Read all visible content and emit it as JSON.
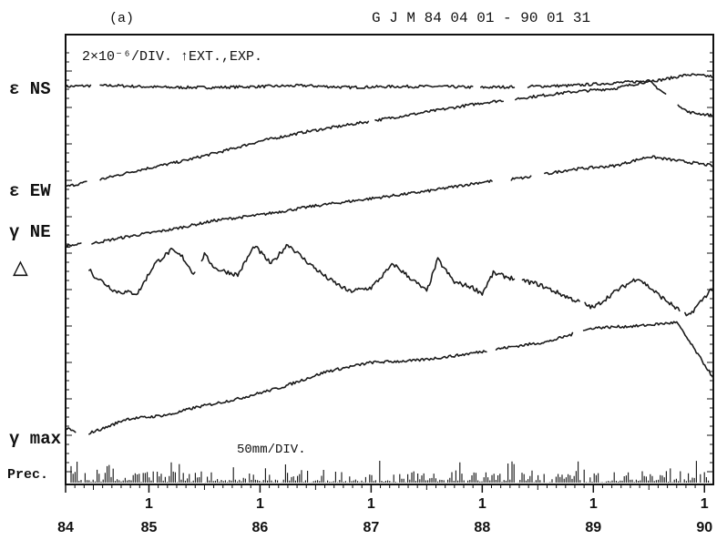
{
  "chart_data": {
    "type": "line",
    "panel_label": "(a)",
    "title": "G J M   84 04 01 - 90 01 31",
    "scale_text": "2×10⁻⁶/DIV.   ↑EXT.,EXP.",
    "precip_scale_text": "50mm/DIV.",
    "x_major_labels": [
      "84",
      "85",
      "86",
      "87",
      "88",
      "89",
      "90"
    ],
    "x_minor_labels": [
      "1",
      "1",
      "1",
      "1",
      "1",
      "1"
    ],
    "xlim": [
      84.25,
      90.08
    ],
    "grid": false,
    "series": [
      {
        "name": "ε NS",
        "baseline": 95,
        "points": [
          [
            84.25,
            0
          ],
          [
            84.5,
            1
          ],
          [
            84.7,
            1
          ],
          [
            84.9,
            0
          ],
          [
            85.2,
            -1
          ],
          [
            85.6,
            -1
          ],
          [
            86.0,
            0
          ],
          [
            86.4,
            1
          ],
          [
            86.8,
            -1
          ],
          [
            87.2,
            0
          ],
          [
            87.6,
            0
          ],
          [
            88.0,
            -1
          ],
          [
            88.4,
            0
          ],
          [
            88.8,
            1
          ],
          [
            89.2,
            4
          ],
          [
            89.6,
            7
          ],
          [
            89.85,
            13
          ],
          [
            90.08,
            11
          ]
        ],
        "gaps": [
          [
            84.48,
            84.55
          ],
          [
            87.92,
            87.98
          ],
          [
            88.3,
            88.4
          ]
        ]
      },
      {
        "name": "",
        "baseline": 205,
        "points": [
          [
            84.25,
            0
          ],
          [
            84.6,
            9
          ],
          [
            84.9,
            18
          ],
          [
            85.3,
            28
          ],
          [
            85.7,
            40
          ],
          [
            86.0,
            50
          ],
          [
            86.4,
            60
          ],
          [
            86.8,
            68
          ],
          [
            87.2,
            76
          ],
          [
            87.6,
            84
          ],
          [
            88.0,
            92
          ],
          [
            88.4,
            98
          ],
          [
            88.8,
            104
          ],
          [
            89.2,
            108
          ],
          [
            89.5,
            116
          ],
          [
            89.85,
            82
          ],
          [
            90.08,
            78
          ]
        ],
        "gaps": [
          [
            84.45,
            84.55
          ],
          [
            86.98,
            87.03
          ],
          [
            88.2,
            88.3
          ],
          [
            89.65,
            89.75
          ]
        ]
      },
      {
        "name": "γ NE",
        "baseline": 270,
        "points": [
          [
            84.25,
            0
          ],
          [
            84.5,
            3
          ],
          [
            84.8,
            10
          ],
          [
            85.2,
            18
          ],
          [
            85.6,
            28
          ],
          [
            86.0,
            34
          ],
          [
            86.5,
            44
          ],
          [
            87.0,
            52
          ],
          [
            87.5,
            60
          ],
          [
            88.0,
            70
          ],
          [
            88.4,
            75
          ],
          [
            88.8,
            84
          ],
          [
            89.2,
            88
          ],
          [
            89.5,
            98
          ],
          [
            89.85,
            92
          ],
          [
            90.08,
            88
          ]
        ],
        "gaps": [
          [
            84.4,
            84.48
          ],
          [
            88.1,
            88.25
          ],
          [
            88.45,
            88.55
          ]
        ]
      },
      {
        "name": "△",
        "baseline": 330,
        "points": [
          [
            84.25,
            60
          ],
          [
            84.35,
            55
          ],
          [
            84.5,
            28
          ],
          [
            84.7,
            10
          ],
          [
            84.9,
            8
          ],
          [
            85.05,
            40
          ],
          [
            85.2,
            55
          ],
          [
            85.3,
            48
          ],
          [
            85.4,
            30
          ],
          [
            85.5,
            50
          ],
          [
            85.6,
            35
          ],
          [
            85.8,
            28
          ],
          [
            85.95,
            60
          ],
          [
            86.1,
            40
          ],
          [
            86.25,
            62
          ],
          [
            86.4,
            45
          ],
          [
            86.6,
            25
          ],
          [
            86.8,
            10
          ],
          [
            87.0,
            14
          ],
          [
            87.2,
            40
          ],
          [
            87.35,
            25
          ],
          [
            87.5,
            10
          ],
          [
            87.6,
            45
          ],
          [
            87.75,
            20
          ],
          [
            87.9,
            15
          ],
          [
            88.0,
            8
          ],
          [
            88.1,
            30
          ],
          [
            88.25,
            25
          ],
          [
            88.5,
            18
          ],
          [
            88.8,
            2
          ],
          [
            89.0,
            -8
          ],
          [
            89.2,
            10
          ],
          [
            89.4,
            25
          ],
          [
            89.6,
            5
          ],
          [
            89.85,
            -18
          ],
          [
            90.08,
            15
          ]
        ],
        "gaps": [
          [
            84.3,
            84.45
          ],
          [
            85.42,
            85.47
          ],
          [
            88.3,
            88.35
          ],
          [
            88.88,
            88.92
          ],
          [
            89.78,
            89.82
          ]
        ]
      },
      {
        "name": "γ max",
        "baseline": 470,
        "points": [
          [
            84.25,
            0
          ],
          [
            84.4,
            -8
          ],
          [
            84.6,
            0
          ],
          [
            84.8,
            10
          ],
          [
            85.0,
            12
          ],
          [
            85.2,
            15
          ],
          [
            85.4,
            22
          ],
          [
            85.8,
            32
          ],
          [
            86.2,
            45
          ],
          [
            86.6,
            62
          ],
          [
            87.0,
            72
          ],
          [
            87.4,
            74
          ],
          [
            87.8,
            80
          ],
          [
            88.2,
            88
          ],
          [
            88.6,
            95
          ],
          [
            89.0,
            110
          ],
          [
            89.4,
            112
          ],
          [
            89.75,
            116
          ],
          [
            90.08,
            55
          ]
        ],
        "gaps": [
          [
            84.35,
            84.45
          ],
          [
            88.05,
            88.12
          ],
          [
            88.82,
            88.9
          ]
        ]
      },
      {
        "name": "Prec.",
        "type": "bar",
        "baseline": 532
      }
    ]
  }
}
